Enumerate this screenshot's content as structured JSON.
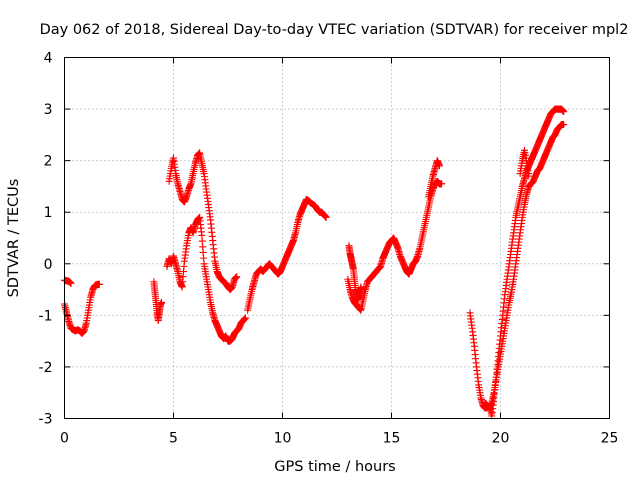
{
  "chart_data": {
    "type": "scatter",
    "title": "Day 062 of 2018, Sidereal Day-to-day VTEC variation (SDTVAR) for receiver mpl2",
    "xlabel": "GPS time / hours",
    "ylabel": "SDTVAR / TECUs",
    "xlim": [
      0,
      25
    ],
    "ylim": [
      -3,
      4
    ],
    "xticks": [
      "0",
      "5",
      "10",
      "15",
      "20",
      "25"
    ],
    "yticks": [
      "-3",
      "-2",
      "-1",
      "0",
      "1",
      "2",
      "3",
      "4"
    ],
    "grid": true,
    "marker": "plus",
    "color": "#ff0000",
    "series_segments": [
      {
        "x": [
          0.0,
          0.1,
          0.2,
          0.3
        ],
        "y": [
          -0.32,
          -0.33,
          -0.34,
          -0.38
        ]
      },
      {
        "x": [
          0.0,
          0.1,
          0.2,
          0.3,
          0.4,
          0.5,
          0.6,
          0.7,
          0.8,
          0.9,
          1.0,
          1.1,
          1.2,
          1.3,
          1.4,
          1.5,
          1.6
        ],
        "y": [
          -0.78,
          -0.95,
          -1.12,
          -1.25,
          -1.28,
          -1.3,
          -1.28,
          -1.3,
          -1.35,
          -1.3,
          -1.15,
          -0.9,
          -0.65,
          -0.5,
          -0.42,
          -0.4,
          -0.4
        ]
      },
      {
        "x": [
          4.1,
          4.15,
          4.2,
          4.25,
          4.3,
          4.35,
          4.4,
          4.45
        ],
        "y": [
          -0.35,
          -0.55,
          -0.75,
          -0.95,
          -1.1,
          -0.95,
          -0.8,
          -0.75
        ]
      },
      {
        "x": [
          4.7,
          4.8,
          4.9,
          5.0,
          5.1,
          5.2,
          5.3,
          5.4,
          5.5,
          5.6,
          5.7,
          5.8,
          5.9,
          6.0,
          6.1,
          6.2,
          6.3,
          6.4,
          6.5,
          6.6,
          6.7,
          6.8,
          6.9,
          7.0,
          7.1,
          7.2,
          7.3,
          7.4,
          7.5,
          7.6,
          7.7,
          7.8,
          7.9,
          8.0,
          8.1,
          8.2,
          8.3
        ],
        "y": [
          -0.05,
          0.1,
          0.0,
          0.15,
          0.0,
          -0.15,
          -0.35,
          -0.45,
          0.05,
          0.35,
          0.6,
          0.7,
          0.6,
          0.75,
          0.85,
          0.9,
          0.55,
          0.0,
          -0.25,
          -0.5,
          -0.75,
          -0.95,
          -1.1,
          -1.2,
          -1.3,
          -1.4,
          -1.45,
          -1.4,
          -1.5,
          -1.5,
          -1.45,
          -1.35,
          -1.3,
          -1.25,
          -1.15,
          -1.1,
          -1.05
        ]
      },
      {
        "x": [
          4.8,
          4.9,
          5.0,
          5.1,
          5.2,
          5.3,
          5.4,
          5.5,
          5.6,
          5.7,
          5.8,
          5.9,
          6.0,
          6.1,
          6.2,
          6.3,
          6.4,
          6.5,
          6.6,
          6.7,
          6.8,
          6.9,
          7.0,
          7.1,
          7.2,
          7.3,
          7.4,
          7.5,
          7.6,
          7.7,
          7.8,
          7.9
        ],
        "y": [
          1.6,
          1.85,
          2.05,
          1.75,
          1.55,
          1.4,
          1.25,
          1.2,
          1.3,
          1.45,
          1.55,
          1.75,
          1.95,
          2.1,
          2.15,
          1.95,
          1.75,
          1.45,
          1.15,
          0.85,
          0.45,
          0.05,
          -0.15,
          -0.25,
          -0.3,
          -0.35,
          -0.38,
          -0.45,
          -0.5,
          -0.45,
          -0.3,
          -0.25
        ]
      },
      {
        "x": [
          8.4,
          8.5,
          8.6,
          8.7,
          8.8,
          8.9,
          9.0,
          9.1,
          9.2,
          9.3,
          9.4,
          9.5,
          9.6,
          9.7,
          9.8,
          9.9,
          10.0,
          10.1,
          10.2,
          10.3,
          10.4,
          10.5,
          10.6,
          10.7,
          10.8,
          10.9,
          11.0,
          11.1,
          11.2,
          11.3,
          11.4,
          11.5,
          11.6,
          11.7,
          11.8,
          11.9,
          12.0
        ],
        "y": [
          -0.9,
          -0.7,
          -0.5,
          -0.35,
          -0.2,
          -0.15,
          -0.1,
          -0.15,
          -0.1,
          -0.05,
          0.0,
          -0.05,
          -0.1,
          -0.15,
          -0.2,
          -0.15,
          -0.05,
          0.05,
          0.15,
          0.25,
          0.35,
          0.45,
          0.6,
          0.8,
          0.95,
          1.05,
          1.15,
          1.25,
          1.22,
          1.18,
          1.15,
          1.12,
          1.05,
          1.0,
          1.0,
          0.95,
          0.9
        ]
      },
      {
        "x": [
          13.05,
          13.1,
          13.15,
          13.2,
          13.25,
          13.3,
          13.35,
          13.4,
          13.45,
          13.5,
          13.55,
          13.6
        ],
        "y": [
          0.35,
          0.2,
          0.1,
          0.0,
          -0.1,
          -0.3,
          -0.5,
          -0.6,
          -0.7,
          -0.65,
          -0.55,
          -0.45
        ]
      },
      {
        "x": [
          13.0,
          13.1,
          13.2,
          13.3,
          13.4,
          13.5,
          13.6,
          13.7,
          13.8,
          13.9,
          14.0,
          14.1,
          14.2,
          14.3,
          14.4,
          14.5,
          14.6,
          14.7,
          14.8,
          14.9,
          15.0,
          15.1,
          15.2,
          15.3,
          15.4,
          15.5,
          15.6,
          15.7,
          15.8,
          15.9,
          16.0,
          16.1,
          16.2,
          16.3,
          16.4,
          16.5,
          16.6,
          16.7,
          16.8,
          16.9,
          17.0,
          17.1,
          17.2,
          17.3
        ],
        "y": [
          -0.3,
          -0.5,
          -0.65,
          -0.75,
          -0.8,
          -0.85,
          -0.9,
          -0.7,
          -0.5,
          -0.35,
          -0.3,
          -0.25,
          -0.2,
          -0.15,
          -0.1,
          -0.05,
          0.1,
          0.2,
          0.3,
          0.4,
          0.45,
          0.5,
          0.4,
          0.3,
          0.15,
          0.05,
          -0.05,
          -0.15,
          -0.2,
          -0.1,
          0.0,
          0.05,
          0.15,
          0.3,
          0.5,
          0.7,
          0.9,
          1.1,
          1.3,
          1.45,
          1.55,
          1.6,
          1.55,
          1.55
        ]
      },
      {
        "x": [
          16.7,
          16.8,
          16.9,
          17.0,
          17.1,
          17.2
        ],
        "y": [
          1.3,
          1.5,
          1.7,
          1.85,
          2.0,
          1.9
        ]
      },
      {
        "x": [
          18.6,
          18.7,
          18.8,
          18.9,
          19.0,
          19.1,
          19.2,
          19.3,
          19.4,
          19.5,
          19.6,
          19.7,
          19.8,
          19.9,
          20.0,
          20.1,
          20.2,
          20.3,
          20.4,
          20.5,
          20.6,
          20.7,
          20.8,
          20.9,
          21.0,
          21.1,
          21.2,
          21.3,
          21.4,
          21.5,
          21.6,
          21.7,
          21.8,
          21.9,
          22.0,
          22.1,
          22.2,
          22.3,
          22.4,
          22.5,
          22.6,
          22.7,
          22.8,
          22.9
        ],
        "y": [
          -0.95,
          -1.25,
          -1.6,
          -2.0,
          -2.35,
          -2.6,
          -2.75,
          -2.8,
          -2.78,
          -2.75,
          -2.95,
          -2.6,
          -2.2,
          -1.8,
          -1.4,
          -1.0,
          -0.6,
          -0.3,
          0.0,
          0.3,
          0.6,
          0.9,
          1.1,
          1.3,
          1.5,
          1.65,
          1.8,
          1.9,
          2.0,
          2.1,
          2.2,
          2.3,
          2.4,
          2.5,
          2.6,
          2.7,
          2.8,
          2.9,
          2.95,
          3.0,
          3.0,
          3.0,
          3.0,
          2.95
        ]
      },
      {
        "x": [
          19.3,
          19.4,
          19.5,
          19.6,
          19.7,
          19.8,
          19.9,
          20.0,
          20.1,
          20.2,
          20.3,
          20.4,
          20.5,
          20.6,
          20.7,
          20.8,
          20.9,
          21.0,
          21.1,
          21.2,
          21.3,
          21.4,
          21.5,
          21.6,
          21.7,
          21.8,
          21.9,
          22.0,
          22.1,
          22.2,
          22.3,
          22.4,
          22.5,
          22.6,
          22.7,
          22.8,
          22.9
        ],
        "y": [
          -2.7,
          -2.75,
          -2.8,
          -2.7,
          -2.5,
          -2.25,
          -2.0,
          -1.75,
          -1.5,
          -1.25,
          -1.0,
          -0.75,
          -0.55,
          -0.3,
          0.0,
          0.3,
          0.6,
          0.9,
          1.15,
          1.35,
          1.5,
          1.55,
          1.6,
          1.7,
          1.8,
          1.85,
          1.95,
          2.05,
          2.15,
          2.25,
          2.35,
          2.45,
          2.5,
          2.6,
          2.65,
          2.7,
          2.7
        ]
      },
      {
        "x": [
          20.9,
          21.0,
          21.1,
          21.2,
          21.3
        ],
        "y": [
          1.75,
          2.0,
          2.2,
          1.95,
          1.7
        ]
      }
    ]
  }
}
